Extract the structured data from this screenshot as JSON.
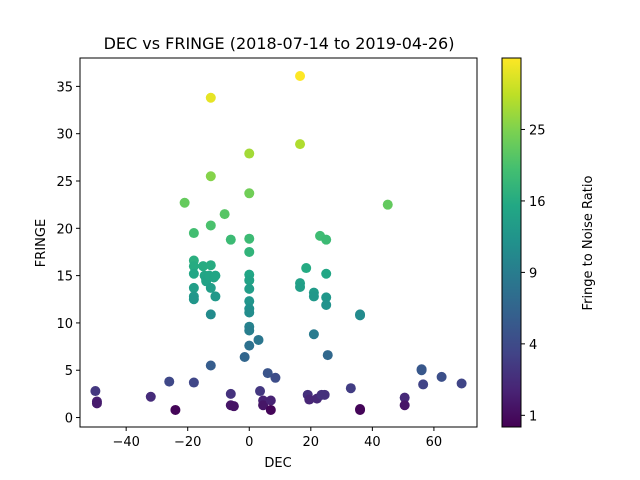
{
  "chart_data": {
    "type": "scatter",
    "title": "DEC vs FRINGE (2018-07-14 to 2019-04-26)",
    "xlabel": "DEC",
    "ylabel": "FRINGE",
    "xlim": [
      -55,
      74
    ],
    "ylim": [
      -1,
      38
    ],
    "xticks": [
      -40,
      -20,
      0,
      20,
      40,
      60
    ],
    "yticks": [
      0,
      5,
      10,
      15,
      20,
      25,
      30,
      35
    ],
    "grid": false,
    "colorbar": {
      "label": "Fringe to Noise Ratio",
      "colormap": "viridis",
      "scale": "sqrt",
      "range": [
        0.7,
        36
      ],
      "ticks": [
        1,
        4,
        9,
        16,
        25
      ],
      "tick_labels": [
        "1",
        "4",
        "9",
        "16",
        "25"
      ]
    },
    "points": [
      {
        "x": -50,
        "y": 2.8
      },
      {
        "x": -49.5,
        "y": 1.7
      },
      {
        "x": -49.5,
        "y": 1.5
      },
      {
        "x": -32,
        "y": 2.2
      },
      {
        "x": -26,
        "y": 3.8
      },
      {
        "x": -24,
        "y": 0.8
      },
      {
        "x": -21,
        "y": 22.7
      },
      {
        "x": -18,
        "y": 19.5
      },
      {
        "x": -18,
        "y": 16.6
      },
      {
        "x": -18,
        "y": 16.0
      },
      {
        "x": -18,
        "y": 15.2
      },
      {
        "x": -18,
        "y": 13.7
      },
      {
        "x": -18,
        "y": 12.8
      },
      {
        "x": -18,
        "y": 12.5
      },
      {
        "x": -18,
        "y": 3.7
      },
      {
        "x": -15,
        "y": 16.0
      },
      {
        "x": -14.5,
        "y": 15.0
      },
      {
        "x": -14,
        "y": 14.6
      },
      {
        "x": -14,
        "y": 14.4
      },
      {
        "x": -13,
        "y": 15.0
      },
      {
        "x": -12.5,
        "y": 33.8
      },
      {
        "x": -12.5,
        "y": 25.5
      },
      {
        "x": -12.5,
        "y": 20.3
      },
      {
        "x": -12.5,
        "y": 16.1
      },
      {
        "x": -12.5,
        "y": 13.7
      },
      {
        "x": -12.5,
        "y": 10.9
      },
      {
        "x": -12.5,
        "y": 5.5
      },
      {
        "x": -11.5,
        "y": 14.8
      },
      {
        "x": -11,
        "y": 15.0
      },
      {
        "x": -11,
        "y": 12.8
      },
      {
        "x": -8,
        "y": 21.5
      },
      {
        "x": -6,
        "y": 18.8
      },
      {
        "x": -6,
        "y": 2.5
      },
      {
        "x": -6,
        "y": 1.3
      },
      {
        "x": -5,
        "y": 1.2
      },
      {
        "x": -1.5,
        "y": 6.4
      },
      {
        "x": 0,
        "y": 27.9
      },
      {
        "x": 0,
        "y": 23.7
      },
      {
        "x": 0,
        "y": 18.9
      },
      {
        "x": 0,
        "y": 17.5
      },
      {
        "x": 0,
        "y": 15.1
      },
      {
        "x": 0,
        "y": 14.5
      },
      {
        "x": 0,
        "y": 13.6
      },
      {
        "x": 0,
        "y": 12.3
      },
      {
        "x": 0,
        "y": 11.5
      },
      {
        "x": 0,
        "y": 11.1
      },
      {
        "x": 0,
        "y": 9.6
      },
      {
        "x": 0,
        "y": 9.2
      },
      {
        "x": 0,
        "y": 7.6
      },
      {
        "x": 3,
        "y": 8.2
      },
      {
        "x": 3.5,
        "y": 2.8
      },
      {
        "x": 4.5,
        "y": 1.8
      },
      {
        "x": 4.5,
        "y": 1.3
      },
      {
        "x": 6,
        "y": 4.7
      },
      {
        "x": 7,
        "y": 1.8
      },
      {
        "x": 7,
        "y": 0.8
      },
      {
        "x": 8.5,
        "y": 4.2
      },
      {
        "x": 16.5,
        "y": 36.1
      },
      {
        "x": 16.5,
        "y": 28.9
      },
      {
        "x": 16.5,
        "y": 14.2
      },
      {
        "x": 16.5,
        "y": 13.8
      },
      {
        "x": 18.5,
        "y": 15.8
      },
      {
        "x": 19,
        "y": 2.4
      },
      {
        "x": 19.5,
        "y": 1.9
      },
      {
        "x": 21,
        "y": 13.2
      },
      {
        "x": 21,
        "y": 12.8
      },
      {
        "x": 21,
        "y": 8.8
      },
      {
        "x": 22,
        "y": 2.0
      },
      {
        "x": 23,
        "y": 19.2
      },
      {
        "x": 23.5,
        "y": 2.4
      },
      {
        "x": 24.5,
        "y": 2.4
      },
      {
        "x": 25,
        "y": 18.8
      },
      {
        "x": 25,
        "y": 15.2
      },
      {
        "x": 25,
        "y": 12.7
      },
      {
        "x": 25,
        "y": 11.9
      },
      {
        "x": 25.5,
        "y": 6.6
      },
      {
        "x": 33,
        "y": 3.1
      },
      {
        "x": 36,
        "y": 10.9
      },
      {
        "x": 36,
        "y": 10.8
      },
      {
        "x": 36,
        "y": 0.9
      },
      {
        "x": 36,
        "y": 0.8
      },
      {
        "x": 45,
        "y": 22.5
      },
      {
        "x": 50.5,
        "y": 2.1
      },
      {
        "x": 50.5,
        "y": 1.3
      },
      {
        "x": 56,
        "y": 5.1
      },
      {
        "x": 56,
        "y": 5.0
      },
      {
        "x": 56.5,
        "y": 3.5
      },
      {
        "x": 62.5,
        "y": 4.3
      },
      {
        "x": 69,
        "y": 3.6
      }
    ]
  }
}
